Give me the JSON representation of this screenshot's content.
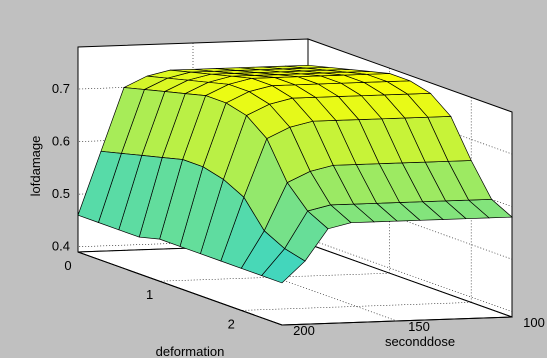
{
  "chart_data": {
    "type": "surface3d",
    "xlabel": "deformation",
    "ylabel": "seconddose",
    "zlabel": "lofdamage",
    "x_ticks": [
      "0",
      "1",
      "2"
    ],
    "y_ticks": [
      "100",
      "150",
      "200"
    ],
    "z_ticks": [
      "0.4",
      "0.5",
      "0.6",
      "0.7"
    ],
    "xlim": [
      0,
      2.5
    ],
    "ylim": [
      100,
      200
    ],
    "zlim": [
      0.39,
      0.78
    ],
    "grid": true,
    "colormap": "summer-like (cyan to yellow)",
    "colors": {
      "background": "#c0c0c0",
      "axes_box": "#ffffff",
      "mesh": "#000000",
      "low": "#00c8ff",
      "high": "#ffff00"
    },
    "x": [
      0,
      0.25,
      0.5,
      0.75,
      1.0,
      1.25,
      1.5,
      1.75,
      2.0,
      2.25,
      2.5
    ],
    "y": [
      100,
      110,
      120,
      130,
      140,
      150,
      160,
      170,
      180,
      190,
      200
    ],
    "z_rows_by_x": [
      [
        0.73,
        0.73,
        0.73,
        0.73,
        0.73,
        0.73,
        0.73,
        0.72,
        0.7,
        0.58,
        0.46
      ],
      [
        0.74,
        0.74,
        0.74,
        0.74,
        0.74,
        0.74,
        0.74,
        0.73,
        0.71,
        0.59,
        0.46
      ],
      [
        0.75,
        0.75,
        0.75,
        0.75,
        0.75,
        0.75,
        0.75,
        0.74,
        0.72,
        0.6,
        0.46
      ],
      [
        0.76,
        0.76,
        0.76,
        0.76,
        0.76,
        0.76,
        0.76,
        0.75,
        0.73,
        0.61,
        0.46
      ],
      [
        0.77,
        0.77,
        0.77,
        0.77,
        0.77,
        0.77,
        0.77,
        0.76,
        0.74,
        0.62,
        0.47
      ],
      [
        0.77,
        0.77,
        0.77,
        0.77,
        0.77,
        0.77,
        0.77,
        0.76,
        0.74,
        0.62,
        0.47
      ],
      [
        0.76,
        0.76,
        0.76,
        0.76,
        0.76,
        0.76,
        0.76,
        0.75,
        0.73,
        0.61,
        0.47
      ],
      [
        0.73,
        0.73,
        0.73,
        0.73,
        0.73,
        0.73,
        0.73,
        0.72,
        0.7,
        0.59,
        0.47
      ],
      [
        0.66,
        0.66,
        0.66,
        0.66,
        0.66,
        0.66,
        0.66,
        0.65,
        0.63,
        0.54,
        0.47
      ],
      [
        0.6,
        0.6,
        0.6,
        0.6,
        0.6,
        0.6,
        0.6,
        0.6,
        0.59,
        0.52,
        0.47
      ],
      [
        0.58,
        0.58,
        0.58,
        0.58,
        0.58,
        0.58,
        0.58,
        0.58,
        0.57,
        0.51,
        0.47
      ]
    ]
  }
}
